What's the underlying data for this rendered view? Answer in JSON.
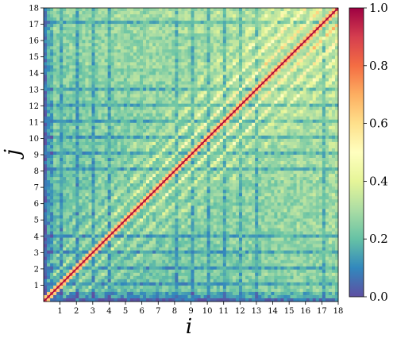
{
  "chart_data": {
    "type": "heatmap",
    "xlabel": "i",
    "ylabel": "j",
    "xlim": [
      0,
      18
    ],
    "ylim": [
      0,
      18
    ],
    "x_ticks": [
      "1",
      "2",
      "3",
      "4",
      "5",
      "6",
      "7",
      "8",
      "9",
      "10",
      "11",
      "12",
      "13",
      "14",
      "15",
      "16",
      "17",
      "18"
    ],
    "y_ticks": [
      "1",
      "2",
      "3",
      "4",
      "5",
      "6",
      "7",
      "8",
      "9",
      "10",
      "11",
      "12",
      "13",
      "14",
      "15",
      "16",
      "17",
      "18"
    ],
    "colorbar": {
      "colormap": "Spectral_r",
      "range": [
        0.0,
        1.0
      ],
      "ticks": [
        "0.0",
        "0.2",
        "0.4",
        "0.6",
        "0.8",
        "1.0"
      ],
      "colors": [
        "#5e4fa2",
        "#3288bd",
        "#66c2a5",
        "#abdda4",
        "#e6f598",
        "#ffffbf",
        "#fee08b",
        "#fdae61",
        "#f46d43",
        "#d53e4f",
        "#9e0142"
      ]
    },
    "description_values": {
      "diagonal": 1.0,
      "near_diagonal_bands": 0.45,
      "background": 0.2,
      "block_grid_period": 1
    }
  }
}
